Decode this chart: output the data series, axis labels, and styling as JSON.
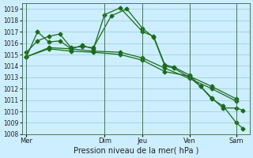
{
  "xlabel": "Pression niveau de la mer( hPa )",
  "bg_color": "#cceeff",
  "grid_color": "#99cccc",
  "line_color": "#1a6b1a",
  "marker": "D",
  "markersize": 2.5,
  "linewidth": 0.9,
  "ylim": [
    1008,
    1019.5
  ],
  "yticks": [
    1008,
    1009,
    1010,
    1011,
    1012,
    1013,
    1014,
    1015,
    1016,
    1017,
    1018,
    1019
  ],
  "xtick_labels": [
    "Mer",
    "Dim",
    "Jeu",
    "Ven",
    "Sam"
  ],
  "xtick_positions": [
    0.0,
    0.35,
    0.52,
    0.73,
    0.94
  ],
  "vline_positions": [
    0.0,
    0.35,
    0.52,
    0.73,
    0.94
  ],
  "series_x": [
    [
      0.0,
      0.05,
      0.1,
      0.15,
      0.2,
      0.25,
      0.3,
      0.35,
      0.42,
      0.52,
      0.57,
      0.62,
      0.66,
      0.73,
      0.78,
      0.83,
      0.88,
      0.94,
      0.97
    ],
    [
      0.0,
      0.05,
      0.1,
      0.15,
      0.2,
      0.25,
      0.3,
      0.38,
      0.45,
      0.52,
      0.57,
      0.62,
      0.66,
      0.73,
      0.78,
      0.83,
      0.88,
      0.94,
      0.97
    ],
    [
      0.0,
      0.1,
      0.2,
      0.3,
      0.42,
      0.52,
      0.62,
      0.73,
      0.83,
      0.94
    ],
    [
      0.0,
      0.1,
      0.2,
      0.3,
      0.42,
      0.52,
      0.62,
      0.73,
      0.83,
      0.94
    ]
  ],
  "series_y": [
    [
      1014.8,
      1017.0,
      1016.1,
      1016.2,
      1015.5,
      1015.8,
      1015.5,
      1018.5,
      1019.1,
      1017.0,
      1016.6,
      1014.1,
      1013.9,
      1013.2,
      1012.2,
      1011.1,
      1010.5,
      1009.0,
      1008.5
    ],
    [
      1015.2,
      1016.2,
      1016.6,
      1016.8,
      1015.6,
      1015.7,
      1015.6,
      1018.4,
      1019.0,
      1017.3,
      1016.5,
      1014.0,
      1013.8,
      1013.0,
      1012.2,
      1011.2,
      1010.3,
      1010.3,
      1010.1
    ],
    [
      1014.8,
      1015.5,
      1015.3,
      1015.2,
      1015.0,
      1014.5,
      1013.5,
      1013.1,
      1012.2,
      1011.1
    ],
    [
      1014.8,
      1015.6,
      1015.5,
      1015.3,
      1015.2,
      1014.7,
      1013.8,
      1012.9,
      1012.0,
      1010.9
    ]
  ]
}
